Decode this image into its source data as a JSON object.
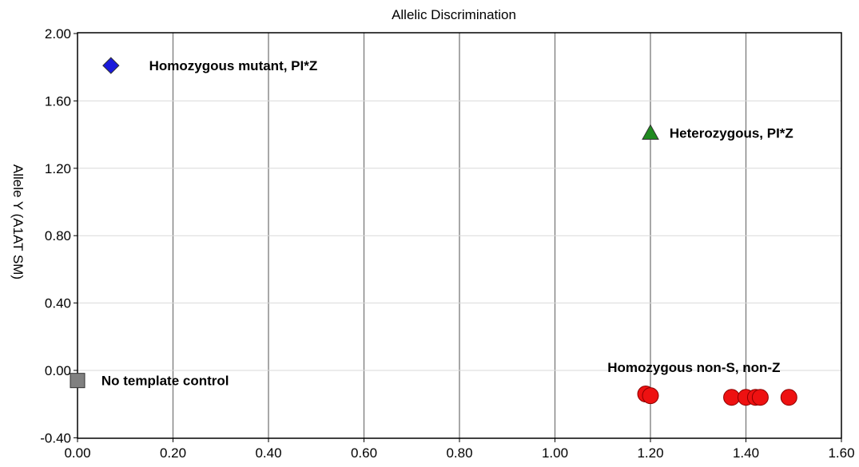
{
  "chart_data": {
    "type": "scatter",
    "title": "Allelic Discrimination",
    "xlabel": "",
    "ylabel": "Allele Y (A1AT SM)",
    "xlim": [
      0.0,
      1.6
    ],
    "ylim": [
      -0.4,
      2.0
    ],
    "x_ticks": [
      "0.00",
      "0.20",
      "0.40",
      "0.60",
      "0.80",
      "1.00",
      "1.20",
      "1.40",
      "1.60"
    ],
    "y_ticks": [
      "2.00",
      "1.60",
      "1.20",
      "0.80",
      "0.40",
      "0.00",
      "-0.40"
    ],
    "grid": true,
    "series": [
      {
        "marker": "diamond",
        "color": "#1a1adb",
        "points": [
          {
            "x": 0.07,
            "y": 1.81
          }
        ]
      },
      {
        "marker": "triangle",
        "color": "#1f8a1f",
        "points": [
          {
            "x": 1.2,
            "y": 1.41
          }
        ]
      },
      {
        "marker": "square",
        "color": "#808080",
        "points": [
          {
            "x": 0.0,
            "y": -0.06
          }
        ]
      },
      {
        "marker": "circle",
        "color": "#ee1111",
        "points": [
          {
            "x": 1.19,
            "y": -0.14
          },
          {
            "x": 1.2,
            "y": -0.15
          },
          {
            "x": 1.37,
            "y": -0.16
          },
          {
            "x": 1.4,
            "y": -0.16
          },
          {
            "x": 1.42,
            "y": -0.16
          },
          {
            "x": 1.43,
            "y": -0.16
          },
          {
            "x": 1.49,
            "y": -0.16
          }
        ]
      }
    ],
    "annotations": [
      {
        "text": "Homozygous mutant, PI*Z",
        "x": 0.15,
        "y": 1.81
      },
      {
        "text": "Heterozygous, PI*Z",
        "x": 1.24,
        "y": 1.41
      },
      {
        "text": "No template control",
        "x": 0.05,
        "y": -0.06
      },
      {
        "text": "Homozygous non-S, non-Z",
        "x": 1.11,
        "y": 0.02
      }
    ]
  }
}
